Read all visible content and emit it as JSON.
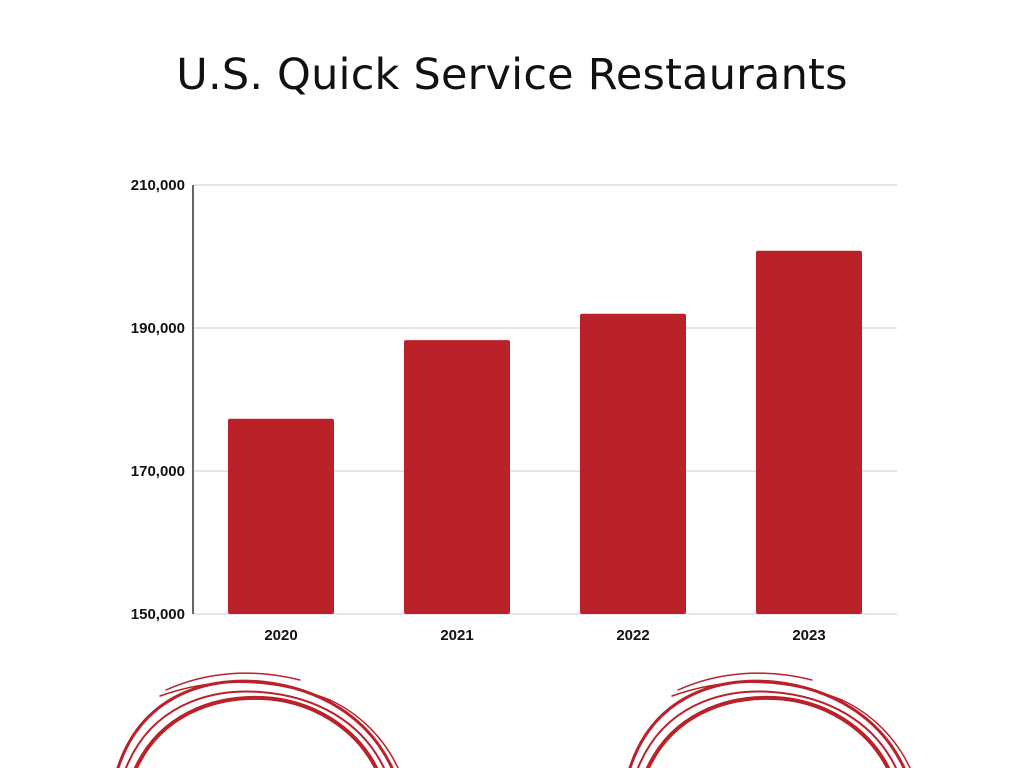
{
  "colors": {
    "bar": "#BA2129",
    "grid": "#CCCCCC",
    "axis": "#333333",
    "decoration": "#BA2129"
  },
  "chart_data": {
    "type": "bar",
    "title": "U.S. Quick Service Restaurants",
    "xlabel": "",
    "ylabel": "",
    "categories": [
      "2020",
      "2021",
      "2022",
      "2023"
    ],
    "values": [
      177300,
      188300,
      192000,
      200800
    ],
    "ylim": [
      150000,
      210000
    ],
    "yticks": [
      "150,000",
      "170,000",
      "190,000",
      "210,000"
    ],
    "ytick_values": [
      150000,
      170000,
      190000,
      210000
    ],
    "grid": true,
    "legend": "none"
  }
}
